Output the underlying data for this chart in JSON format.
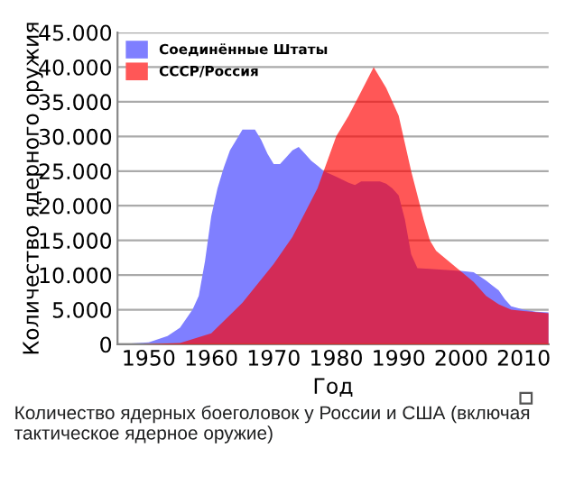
{
  "chart_data": {
    "type": "area",
    "xlabel": "Год",
    "ylabel": "Количество ядерного оружия",
    "xlim": [
      1945,
      2014
    ],
    "xticks": [
      1950,
      1960,
      1970,
      1980,
      1990,
      2000,
      2010
    ],
    "ylim": [
      0,
      45000
    ],
    "yticks": [
      {
        "value": 0,
        "label": "0"
      },
      {
        "value": 5000,
        "label": "5.000"
      },
      {
        "value": 10000,
        "label": "10.000"
      },
      {
        "value": 15000,
        "label": "15.000"
      },
      {
        "value": 20000,
        "label": "20.000"
      },
      {
        "value": 25000,
        "label": "25.000"
      },
      {
        "value": 30000,
        "label": "30.000"
      },
      {
        "value": 35000,
        "label": "35.000"
      },
      {
        "value": 40000,
        "label": "40.000"
      },
      {
        "value": 45000,
        "label": "45.000"
      }
    ],
    "grid": "y",
    "legend": "top left",
    "series": [
      {
        "name": "Соединённые Штаты",
        "color": "#7f7fff",
        "x": [
          1945,
          1950,
          1953,
          1955,
          1957,
          1958,
          1959,
          1960,
          1961,
          1962,
          1963,
          1964,
          1965,
          1967,
          1968,
          1969,
          1970,
          1971,
          1972,
          1973,
          1974,
          1975,
          1976,
          1977,
          1978,
          1980,
          1982,
          1983,
          1984,
          1987,
          1988,
          1989,
          1990,
          1991,
          1992,
          1993,
          1995,
          2000,
          2002,
          2004,
          2005,
          2006,
          2007,
          2008,
          2010,
          2012,
          2014
        ],
        "values": [
          0,
          300,
          1200,
          2400,
          5000,
          7000,
          12000,
          18500,
          22500,
          25500,
          28000,
          29500,
          31000,
          31000,
          29500,
          27500,
          26000,
          26000,
          27000,
          28000,
          28500,
          27500,
          26500,
          25800,
          25000,
          24200,
          23300,
          23000,
          23500,
          23500,
          23200,
          22500,
          21500,
          18000,
          13000,
          11000,
          10900,
          10600,
          10400,
          9200,
          8500,
          7800,
          6500,
          5500,
          5000,
          4700,
          4600
        ]
      },
      {
        "name": "СССР/Россия",
        "color": "#ff5757",
        "x": [
          1945,
          1949,
          1955,
          1960,
          1965,
          1970,
          1973,
          1975,
          1977,
          1978,
          1980,
          1982,
          1984,
          1986,
          1988,
          1990,
          1992,
          1994,
          1995,
          1996,
          1998,
          2000,
          2002,
          2004,
          2006,
          2008,
          2010,
          2014
        ],
        "values": [
          0,
          0,
          200,
          1600,
          6000,
          11600,
          15500,
          19000,
          22500,
          25000,
          30000,
          33000,
          36500,
          40000,
          37000,
          33000,
          25000,
          18000,
          15000,
          13500,
          12000,
          10500,
          9000,
          7000,
          5800,
          5000,
          4800,
          4500
        ]
      }
    ],
    "annotations": [
      "Количество ядерных боеголовок у России и США (включая тактическое ядерное оружие)"
    ]
  }
}
